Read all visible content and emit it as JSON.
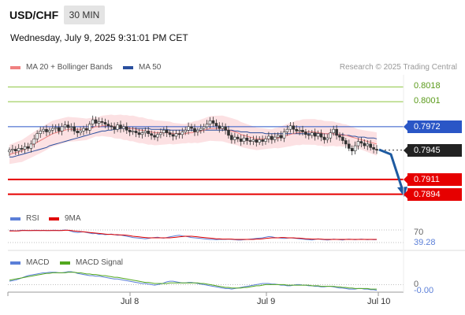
{
  "header": {
    "symbol": "USD/CHF",
    "timeframe": "30 MIN",
    "datetime": "Wednesday, July 9, 2025 9:31:01 PM CET"
  },
  "legend": {
    "ma20": "MA 20 + Bollinger Bands",
    "ma50": "MA 50",
    "credit": "Research © 2025 Trading Central",
    "rsi": "RSI",
    "ma9": "9MA",
    "macd": "MACD",
    "macd_signal": "MACD Signal"
  },
  "colors": {
    "ma20": "#f08080",
    "ma50": "#2a4f9e",
    "bands": "#fbd9dc",
    "resistance": "#8cc43f",
    "resistance_text": "#5a9a1a",
    "pivot": "#2a56c6",
    "support": "#e60000",
    "current": "#222222",
    "rsi": "#5b7fd8",
    "rsi_ma": "#e00000",
    "macd": "#5b7fd8",
    "macd_signal": "#52a81e",
    "arrow": "#1e5aa0"
  },
  "chart_data": [
    {
      "type": "candlestick",
      "name": "price",
      "x_ticks": [
        "Jul 8",
        "Jul 9",
        "Jul 10"
      ],
      "ylim": [
        0.788,
        0.8032
      ],
      "levels": [
        {
          "value": 0.8018,
          "label": "0.8018",
          "kind": "resistance"
        },
        {
          "value": 0.8001,
          "label": "0.8001",
          "kind": "resistance"
        },
        {
          "value": 0.7972,
          "label": "0.7972",
          "kind": "pivot"
        },
        {
          "value": 0.7945,
          "label": "0.7945",
          "kind": "current"
        },
        {
          "value": 0.7911,
          "label": "0.7911",
          "kind": "support"
        },
        {
          "value": 0.7894,
          "label": "0.7894",
          "kind": "support"
        }
      ],
      "close": [
        0.7945,
        0.7946,
        0.7944,
        0.7947,
        0.7946,
        0.7949,
        0.7947,
        0.7952,
        0.7958,
        0.7964,
        0.7967,
        0.7969,
        0.7966,
        0.7968,
        0.797,
        0.7971,
        0.7967,
        0.7972,
        0.7974,
        0.7971,
        0.7972,
        0.7967,
        0.7965,
        0.7967,
        0.797,
        0.7968,
        0.7975,
        0.798,
        0.7976,
        0.7978,
        0.7977,
        0.7975,
        0.7973,
        0.7972,
        0.7969,
        0.7974,
        0.797,
        0.7972,
        0.7968,
        0.7966,
        0.7967,
        0.7965,
        0.7963,
        0.7965,
        0.7967,
        0.7964,
        0.7962,
        0.796,
        0.7963,
        0.7965,
        0.7968,
        0.7965,
        0.7963,
        0.7961,
        0.7964,
        0.7963,
        0.7966,
        0.7968,
        0.7972,
        0.797,
        0.7966,
        0.7968,
        0.797,
        0.7972,
        0.7975,
        0.7979,
        0.7976,
        0.7973,
        0.797,
        0.7972,
        0.7968,
        0.7962,
        0.7957,
        0.796,
        0.7958,
        0.7955,
        0.7959,
        0.7956,
        0.7955,
        0.7957,
        0.7954,
        0.7957,
        0.7955,
        0.7958,
        0.7961,
        0.7957,
        0.796,
        0.7962,
        0.7959,
        0.7966,
        0.7969,
        0.7973,
        0.7969,
        0.7967,
        0.7968,
        0.7966,
        0.7963,
        0.7962,
        0.7965,
        0.7961,
        0.7964,
        0.796,
        0.7957,
        0.7959,
        0.7965,
        0.7969,
        0.7962,
        0.796,
        0.7956,
        0.7952,
        0.7947,
        0.7944,
        0.795,
        0.7955,
        0.7953,
        0.795,
        0.7952,
        0.7948,
        0.7946,
        0.7945
      ],
      "ma20": [
        0.794,
        0.7941,
        0.7942,
        0.7943,
        0.7944,
        0.7946,
        0.7948,
        0.795,
        0.7952,
        0.7954,
        0.7956,
        0.7958,
        0.796,
        0.7962,
        0.7964,
        0.7965,
        0.7966,
        0.7967,
        0.7968,
        0.7969,
        0.7969,
        0.7969,
        0.7969,
        0.7969,
        0.7969,
        0.7969,
        0.797,
        0.7971,
        0.7972,
        0.7972,
        0.7973,
        0.7973,
        0.7973,
        0.7973,
        0.7972,
        0.7972,
        0.7972,
        0.7971,
        0.7971,
        0.797,
        0.797,
        0.7969,
        0.7968,
        0.7968,
        0.7967,
        0.7966,
        0.7966,
        0.7965,
        0.7965,
        0.7965,
        0.7965,
        0.7965,
        0.7965,
        0.7964,
        0.7964,
        0.7964,
        0.7964,
        0.7964,
        0.7965,
        0.7965,
        0.7966,
        0.7966,
        0.7967,
        0.7968,
        0.7969,
        0.797,
        0.797,
        0.797,
        0.797,
        0.797,
        0.7969,
        0.7968,
        0.7967,
        0.7966,
        0.7965,
        0.7963,
        0.7962,
        0.7961,
        0.796,
        0.7959,
        0.7958,
        0.7958,
        0.7958,
        0.7958,
        0.7958,
        0.7958,
        0.7959,
        0.7959,
        0.796,
        0.7961,
        0.7962,
        0.7963,
        0.7964,
        0.7965,
        0.7965,
        0.7966,
        0.7966,
        0.7966,
        0.7966,
        0.7966,
        0.7965,
        0.7965,
        0.7964,
        0.7964,
        0.7964,
        0.7964,
        0.7963,
        0.7963,
        0.7962,
        0.7962,
        0.7961,
        0.796,
        0.7959,
        0.7958,
        0.7957,
        0.7956,
        0.7955,
        0.7954,
        0.7953,
        0.7952
      ],
      "ma50": [
        0.7937,
        0.7937,
        0.7938,
        0.7939,
        0.794,
        0.7941,
        0.7942,
        0.7943,
        0.7944,
        0.7945,
        0.7946,
        0.7947,
        0.7948,
        0.795,
        0.7951,
        0.7952,
        0.7953,
        0.7954,
        0.7955,
        0.7956,
        0.7957,
        0.7958,
        0.7959,
        0.796,
        0.7961,
        0.7962,
        0.7963,
        0.7964,
        0.7965,
        0.7966,
        0.7967,
        0.7967,
        0.7968,
        0.7968,
        0.7969,
        0.7969,
        0.797,
        0.797,
        0.797,
        0.797,
        0.797,
        0.797,
        0.797,
        0.797,
        0.797,
        0.797,
        0.7969,
        0.7969,
        0.7969,
        0.7969,
        0.7969,
        0.7969,
        0.7968,
        0.7968,
        0.7968,
        0.7968,
        0.7968,
        0.7968,
        0.7968,
        0.7968,
        0.7968,
        0.7968,
        0.7968,
        0.7968,
        0.7968,
        0.7968,
        0.7968,
        0.7968,
        0.7968,
        0.7968,
        0.7968,
        0.7968,
        0.7968,
        0.7967,
        0.7967,
        0.7966,
        0.7966,
        0.7966,
        0.7965,
        0.7965,
        0.7965,
        0.7965,
        0.7965,
        0.7964,
        0.7964,
        0.7964,
        0.7964,
        0.7964,
        0.7964,
        0.7964,
        0.7964,
        0.7964,
        0.7964,
        0.7964,
        0.7964,
        0.7964,
        0.7964,
        0.7964,
        0.7964,
        0.7964,
        0.7964,
        0.7964,
        0.7964,
        0.7964,
        0.7964,
        0.7964,
        0.7963,
        0.7963,
        0.7963,
        0.7962,
        0.7962,
        0.7961,
        0.7961,
        0.796,
        0.796,
        0.796,
        0.7959,
        0.7959,
        0.7959,
        0.7958
      ],
      "band_width": 0.0013
    },
    {
      "type": "line",
      "name": "rsi",
      "ylim": [
        20,
        80
      ],
      "levels": [
        {
          "value": 70,
          "label": "70"
        },
        {
          "value": 30,
          "label": ""
        }
      ],
      "current_label": "39.28",
      "series": [
        {
          "name": "RSI",
          "values": [
            68,
            68,
            67,
            68,
            69,
            69,
            68,
            68,
            69,
            69,
            68,
            69,
            68,
            68,
            69,
            69,
            68,
            69,
            70,
            69,
            66,
            63,
            62,
            63,
            64,
            62,
            60,
            58,
            59,
            56,
            57,
            55,
            56,
            57,
            55,
            53,
            54,
            52,
            50,
            48,
            46,
            45,
            44,
            43,
            42,
            43,
            45,
            46,
            47,
            45,
            44,
            46,
            48,
            50,
            52,
            53,
            51,
            50,
            48,
            46,
            45,
            44,
            43,
            42,
            41,
            40,
            40,
            39,
            40,
            40,
            40,
            41,
            40,
            39,
            38,
            38,
            39,
            40,
            41,
            42,
            43,
            44,
            45,
            47,
            49,
            48,
            46,
            45,
            44,
            43,
            44,
            45,
            44,
            43,
            42,
            41,
            40,
            39,
            38,
            40,
            42,
            40,
            39,
            38,
            39,
            41,
            40,
            39,
            38,
            40,
            41,
            40,
            39,
            40,
            41,
            40,
            39,
            40,
            39,
            39.28
          ]
        },
        {
          "name": "9MA",
          "values": [
            67,
            67,
            67,
            67,
            68,
            68,
            68,
            68,
            68,
            68,
            68,
            68,
            68,
            68,
            68,
            68,
            68,
            68,
            69,
            69,
            68,
            67,
            66,
            65,
            64,
            63,
            62,
            61,
            60,
            59,
            58,
            57,
            56,
            56,
            55,
            55,
            54,
            54,
            53,
            52,
            50,
            49,
            48,
            47,
            46,
            45,
            45,
            45,
            45,
            45,
            45,
            45,
            45,
            46,
            47,
            48,
            49,
            50,
            50,
            50,
            49,
            48,
            47,
            46,
            45,
            44,
            43,
            42,
            42,
            41,
            41,
            41,
            41,
            40,
            40,
            40,
            40,
            40,
            40,
            40,
            41,
            41,
            42,
            43,
            44,
            45,
            45,
            45,
            46,
            46,
            45,
            45,
            45,
            44,
            44,
            43,
            42,
            42,
            41,
            41,
            41,
            41,
            40,
            40,
            40,
            40,
            40,
            40,
            40,
            40,
            40,
            40,
            40,
            40,
            40,
            40,
            40,
            40,
            40,
            40
          ]
        }
      ]
    },
    {
      "type": "line",
      "name": "macd",
      "ylim": [
        -0.0012,
        0.003
      ],
      "levels": [
        {
          "value": 0,
          "label": "0"
        }
      ],
      "current_label": "-0.00",
      "series": [
        {
          "name": "MACD",
          "values": [
            0.0006,
            0.0007,
            0.0008,
            0.001,
            0.0012,
            0.0014,
            0.0016,
            0.0017,
            0.0018,
            0.0019,
            0.002,
            0.0021,
            0.0021,
            0.0022,
            0.0022,
            0.0022,
            0.0021,
            0.0021,
            0.0022,
            0.0023,
            0.0023,
            0.0022,
            0.002,
            0.0019,
            0.0018,
            0.0017,
            0.0016,
            0.0016,
            0.0015,
            0.0015,
            0.0014,
            0.0013,
            0.0012,
            0.0011,
            0.001,
            0.001,
            0.0009,
            0.0008,
            0.0007,
            0.0006,
            0.0005,
            0.0004,
            0.0003,
            0.0002,
            0.0002,
            0.0001,
            0.0,
            -0.0001,
            0.0,
            0.0001,
            0.0003,
            0.0005,
            0.0006,
            0.0006,
            0.0005,
            0.0004,
            0.0003,
            0.0003,
            0.0004,
            0.0004,
            0.0003,
            0.0002,
            0.0001,
            0.0,
            -0.0001,
            -0.0002,
            -0.0003,
            -0.0004,
            -0.0005,
            -0.0006,
            -0.0007,
            -0.0007,
            -0.0008,
            -0.0007,
            -0.0006,
            -0.0005,
            -0.0004,
            -0.0003,
            -0.0002,
            -0.0001,
            0.0,
            0.0001,
            0.0002,
            0.0002,
            0.0002,
            0.0001,
            0.0001,
            0.0,
            -0.0001,
            -0.0001,
            -0.0002,
            -0.0002,
            -0.0001,
            0.0,
            0.0,
            -0.0001,
            -0.0001,
            -0.0002,
            -0.0002,
            -0.0003,
            -0.0003,
            -0.0004,
            -0.0004,
            -0.0003,
            -0.0003,
            -0.0004,
            -0.0005,
            -0.0006,
            -0.0006,
            -0.0007,
            -0.0008,
            -0.0008,
            -0.0008,
            -0.0007,
            -0.0007,
            -0.0008,
            -0.0008,
            -0.0009,
            -0.0009,
            -0.001
          ]
        },
        {
          "name": "MACD Signal",
          "values": [
            0.0008,
            0.0009,
            0.001,
            0.0011,
            0.0012,
            0.0013,
            0.0014,
            0.0015,
            0.0016,
            0.0017,
            0.0018,
            0.0019,
            0.002,
            0.002,
            0.0021,
            0.0021,
            0.0021,
            0.0021,
            0.0021,
            0.0022,
            0.0022,
            0.0022,
            0.0021,
            0.0021,
            0.002,
            0.0019,
            0.0019,
            0.0018,
            0.0018,
            0.0017,
            0.0016,
            0.0016,
            0.0015,
            0.0014,
            0.0013,
            0.0013,
            0.0012,
            0.0011,
            0.001,
            0.0009,
            0.0008,
            0.0007,
            0.0006,
            0.0005,
            0.0004,
            0.0004,
            0.0003,
            0.0002,
            0.0002,
            0.0002,
            0.0002,
            0.0002,
            0.0003,
            0.0003,
            0.0003,
            0.0003,
            0.0003,
            0.0003,
            0.0003,
            0.0003,
            0.0003,
            0.0003,
            0.0002,
            0.0002,
            0.0001,
            0.0,
            -0.0001,
            -0.0002,
            -0.0003,
            -0.0004,
            -0.0005,
            -0.0005,
            -0.0006,
            -0.0006,
            -0.0006,
            -0.0006,
            -0.0005,
            -0.0005,
            -0.0004,
            -0.0003,
            -0.0002,
            -0.0002,
            -0.0001,
            0.0,
            0.0,
            0.0,
            0.0,
            0.0,
            0.0,
            0.0,
            -0.0001,
            -0.0001,
            -0.0001,
            -0.0001,
            -0.0001,
            -0.0001,
            -0.0001,
            -0.0001,
            -0.0002,
            -0.0002,
            -0.0002,
            -0.0003,
            -0.0003,
            -0.0003,
            -0.0003,
            -0.0003,
            -0.0004,
            -0.0004,
            -0.0005,
            -0.0005,
            -0.0006,
            -0.0006,
            -0.0007,
            -0.0007,
            -0.0007,
            -0.0007,
            -0.0007,
            -0.0008,
            -0.0008,
            -0.0008
          ]
        }
      ]
    }
  ]
}
